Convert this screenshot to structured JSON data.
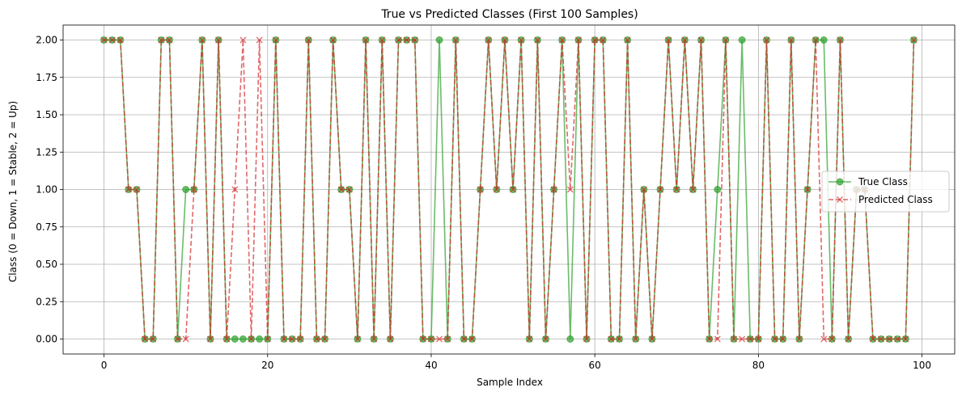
{
  "chart_data": {
    "type": "line",
    "title": "True vs Predicted Classes (First 100 Samples)",
    "xlabel": "Sample Index",
    "ylabel": "Class (0 = Down, 1 = Stable, 2 = Up)",
    "xlim": [
      -5,
      104
    ],
    "ylim": [
      -0.1,
      2.1
    ],
    "x_ticks": [
      0,
      20,
      40,
      60,
      80,
      100
    ],
    "y_ticks": [
      0.0,
      0.25,
      0.5,
      0.75,
      1.0,
      1.25,
      1.5,
      1.75,
      2.0
    ],
    "x_tick_labels": [
      "0",
      "20",
      "40",
      "60",
      "80",
      "100"
    ],
    "y_tick_labels": [
      "0.00",
      "0.25",
      "0.50",
      "0.75",
      "1.00",
      "1.25",
      "1.50",
      "1.75",
      "2.00"
    ],
    "grid": true,
    "legend_position": "center-right",
    "x": [
      0,
      1,
      2,
      3,
      4,
      5,
      6,
      7,
      8,
      9,
      10,
      11,
      12,
      13,
      14,
      15,
      16,
      17,
      18,
      19,
      20,
      21,
      22,
      23,
      24,
      25,
      26,
      27,
      28,
      29,
      30,
      31,
      32,
      33,
      34,
      35,
      36,
      37,
      38,
      39,
      40,
      41,
      42,
      43,
      44,
      45,
      46,
      47,
      48,
      49,
      50,
      51,
      52,
      53,
      54,
      55,
      56,
      57,
      58,
      59,
      60,
      61,
      62,
      63,
      64,
      65,
      66,
      67,
      68,
      69,
      70,
      71,
      72,
      73,
      74,
      75,
      76,
      77,
      78,
      79,
      80,
      81,
      82,
      83,
      84,
      85,
      86,
      87,
      88,
      89,
      90,
      91,
      92,
      93,
      94,
      95,
      96,
      97,
      98,
      99
    ],
    "series": [
      {
        "name": "True Class",
        "color": "#2ca02c",
        "marker": "circle",
        "linestyle": "solid",
        "values": [
          2,
          2,
          2,
          1,
          1,
          0,
          0,
          2,
          2,
          0,
          1,
          1,
          2,
          0,
          2,
          0,
          0,
          0,
          0,
          0,
          0,
          2,
          0,
          0,
          0,
          2,
          0,
          0,
          2,
          1,
          1,
          0,
          2,
          0,
          2,
          0,
          2,
          2,
          2,
          0,
          0,
          2,
          0,
          2,
          0,
          0,
          1,
          2,
          1,
          2,
          1,
          2,
          0,
          2,
          0,
          1,
          2,
          0,
          2,
          0,
          2,
          2,
          0,
          0,
          2,
          0,
          1,
          0,
          1,
          2,
          1,
          2,
          1,
          2,
          0,
          1,
          2,
          0,
          2,
          0,
          0,
          2,
          0,
          0,
          2,
          0,
          1,
          2,
          2,
          0,
          2,
          0,
          1,
          1,
          0,
          0,
          0,
          0,
          0,
          2
        ]
      },
      {
        "name": "Predicted Class",
        "color": "#d62728",
        "marker": "x",
        "linestyle": "dashed",
        "values": [
          2,
          2,
          2,
          1,
          1,
          0,
          0,
          2,
          2,
          0,
          0,
          1,
          2,
          0,
          2,
          0,
          1,
          2,
          0,
          2,
          0,
          2,
          0,
          0,
          0,
          2,
          0,
          0,
          2,
          1,
          1,
          0,
          2,
          0,
          2,
          0,
          2,
          2,
          2,
          0,
          0,
          0,
          0,
          2,
          0,
          0,
          1,
          2,
          1,
          2,
          1,
          2,
          0,
          2,
          0,
          1,
          2,
          1,
          2,
          0,
          2,
          2,
          0,
          0,
          2,
          0,
          1,
          0,
          1,
          2,
          1,
          2,
          1,
          2,
          0,
          0,
          2,
          0,
          0,
          0,
          0,
          2,
          0,
          0,
          2,
          0,
          1,
          2,
          0,
          0,
          2,
          0,
          1,
          1,
          0,
          0,
          0,
          0,
          0,
          2
        ]
      }
    ]
  }
}
